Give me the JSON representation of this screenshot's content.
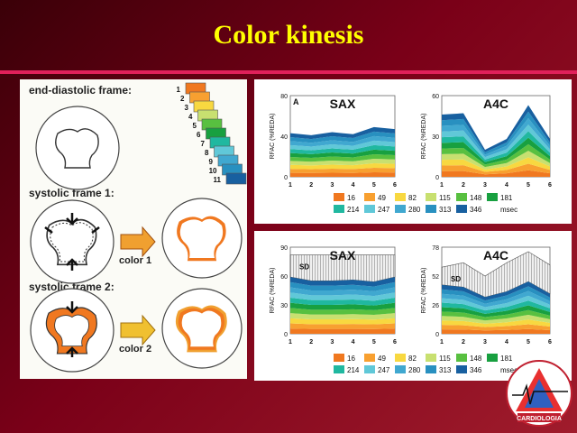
{
  "slide": {
    "title": "Color kinesis",
    "colors": {
      "title": "#ffff00",
      "accent_line": "#e0205a"
    }
  },
  "diagram": {
    "end_diastolic_label": "end-diastolic frame:",
    "systolic1_label": "systolic frame 1:",
    "systolic2_label": "systolic frame 2:",
    "color1_label": "color 1",
    "color2_label": "color 2",
    "swatch_numbers": [
      "1",
      "2",
      "3",
      "4",
      "5",
      "6",
      "7",
      "8",
      "9",
      "10",
      "11"
    ]
  },
  "chart_data": [
    {
      "type": "area",
      "panel": "A",
      "title": "SAX",
      "ylabel": "RFAC (%REDA)",
      "x": [
        1,
        2,
        3,
        4,
        5,
        6
      ],
      "yticks": [
        "0",
        "40",
        "80"
      ],
      "ylim": [
        0,
        80
      ],
      "top_envelope": [
        43,
        41,
        44,
        42,
        49,
        47
      ]
    },
    {
      "type": "area",
      "title": "A4C",
      "ylabel": "RFAC (%REDA)",
      "x": [
        1,
        2,
        3,
        4,
        5,
        6
      ],
      "yticks": [
        "0",
        "30",
        "60"
      ],
      "ylim": [
        0,
        60
      ],
      "top_envelope": [
        46,
        47,
        20,
        28,
        53,
        28
      ]
    },
    {
      "type": "area",
      "title": "SAX",
      "ylabel": "RFAC (%REDA)",
      "inner_label": "SD",
      "x": [
        1,
        2,
        3,
        4,
        5,
        6
      ],
      "yticks": [
        "0",
        "30",
        "60",
        "90"
      ],
      "ylim": [
        0,
        90
      ],
      "top_envelope": [
        59,
        55,
        55,
        56,
        54,
        59
      ],
      "sd_top": [
        82,
        82,
        82,
        82,
        82,
        82
      ]
    },
    {
      "type": "area",
      "title": "A4C",
      "ylabel": "RFAC (%REDA)",
      "inner_label": "SD",
      "x": [
        1,
        2,
        3,
        4,
        5,
        6
      ],
      "yticks": [
        "0",
        "26",
        "52",
        "78"
      ],
      "ylim": [
        0,
        78
      ],
      "top_envelope": [
        44,
        42,
        33,
        38,
        47,
        36
      ],
      "sd_top": [
        60,
        64,
        52,
        64,
        74,
        62
      ]
    }
  ],
  "legend": {
    "items": [
      "16",
      "49",
      "82",
      "115",
      "148",
      "181",
      "214",
      "247",
      "280",
      "313",
      "346"
    ],
    "unit": "msec",
    "colors": [
      "#f07820",
      "#f8a030",
      "#f8d840",
      "#c8e070",
      "#58c040",
      "#18a040",
      "#20b8a0",
      "#60c8d8",
      "#40a8d0",
      "#2890c0",
      "#1860a0"
    ]
  },
  "logo": {
    "text": "CARDIOLOGIA"
  }
}
